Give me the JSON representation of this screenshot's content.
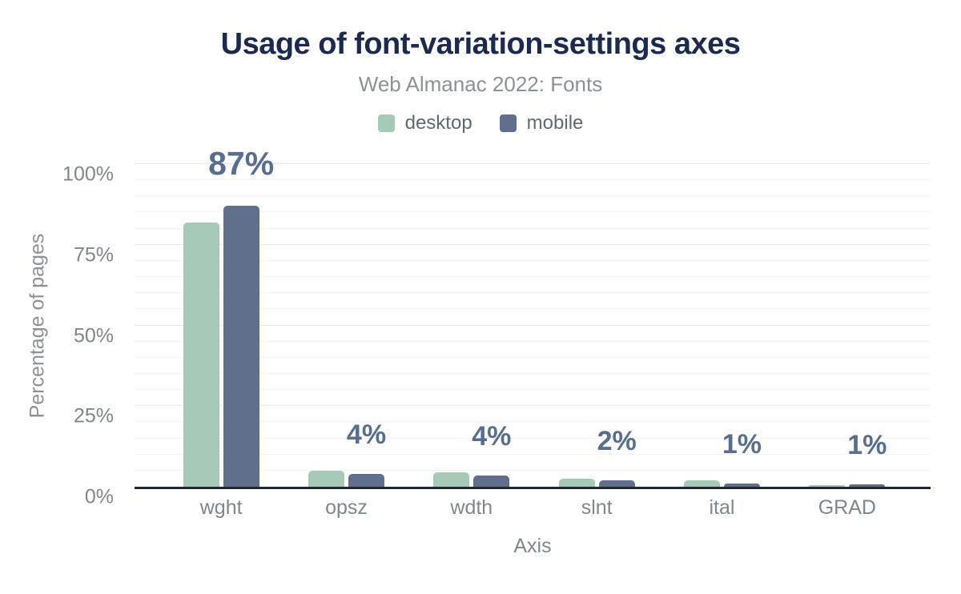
{
  "title": "Usage of font-variation-settings axes",
  "subtitle": "Web Almanac 2022: Fonts",
  "legend": {
    "items": [
      {
        "label": "desktop",
        "color": "#a5cab8"
      },
      {
        "label": "mobile",
        "color": "#5f6f8c"
      }
    ]
  },
  "y_axis": {
    "title": "Percentage of pages",
    "ticks": [
      {
        "label": "0%",
        "percent": 0
      },
      {
        "label": "25%",
        "percent": 25
      },
      {
        "label": "50%",
        "percent": 50
      },
      {
        "label": "75%",
        "percent": 75
      },
      {
        "label": "100%",
        "percent": 100
      }
    ]
  },
  "x_axis": {
    "title": "Axis"
  },
  "chart_data": {
    "type": "bar",
    "title": "Usage of font-variation-settings axes",
    "subtitle": "Web Almanac 2022: Fonts",
    "categories": [
      "wght",
      "opsz",
      "wdth",
      "slnt",
      "ital",
      "GRAD"
    ],
    "series": [
      {
        "name": "desktop",
        "color": "#a5cab8",
        "values": [
          82,
          5,
          4.5,
          2.5,
          2,
          0.5
        ]
      },
      {
        "name": "mobile",
        "color": "#5f6f8c",
        "values": [
          87,
          4,
          3.5,
          2,
          1,
          0.8
        ]
      }
    ],
    "value_labels": [
      "87%",
      "4%",
      "4%",
      "2%",
      "1%",
      "1%"
    ],
    "value_labels_refer_to": "mobile",
    "xlabel": "Axis",
    "ylabel": "Percentage of pages",
    "ylim": [
      0,
      100
    ],
    "ytick_percents": [
      0,
      25,
      50,
      75,
      100
    ],
    "grid_step_percent": 5,
    "grid": true,
    "legend_position": "top",
    "value_label_color": "#586e91",
    "axis_line_color": "#23262e"
  }
}
